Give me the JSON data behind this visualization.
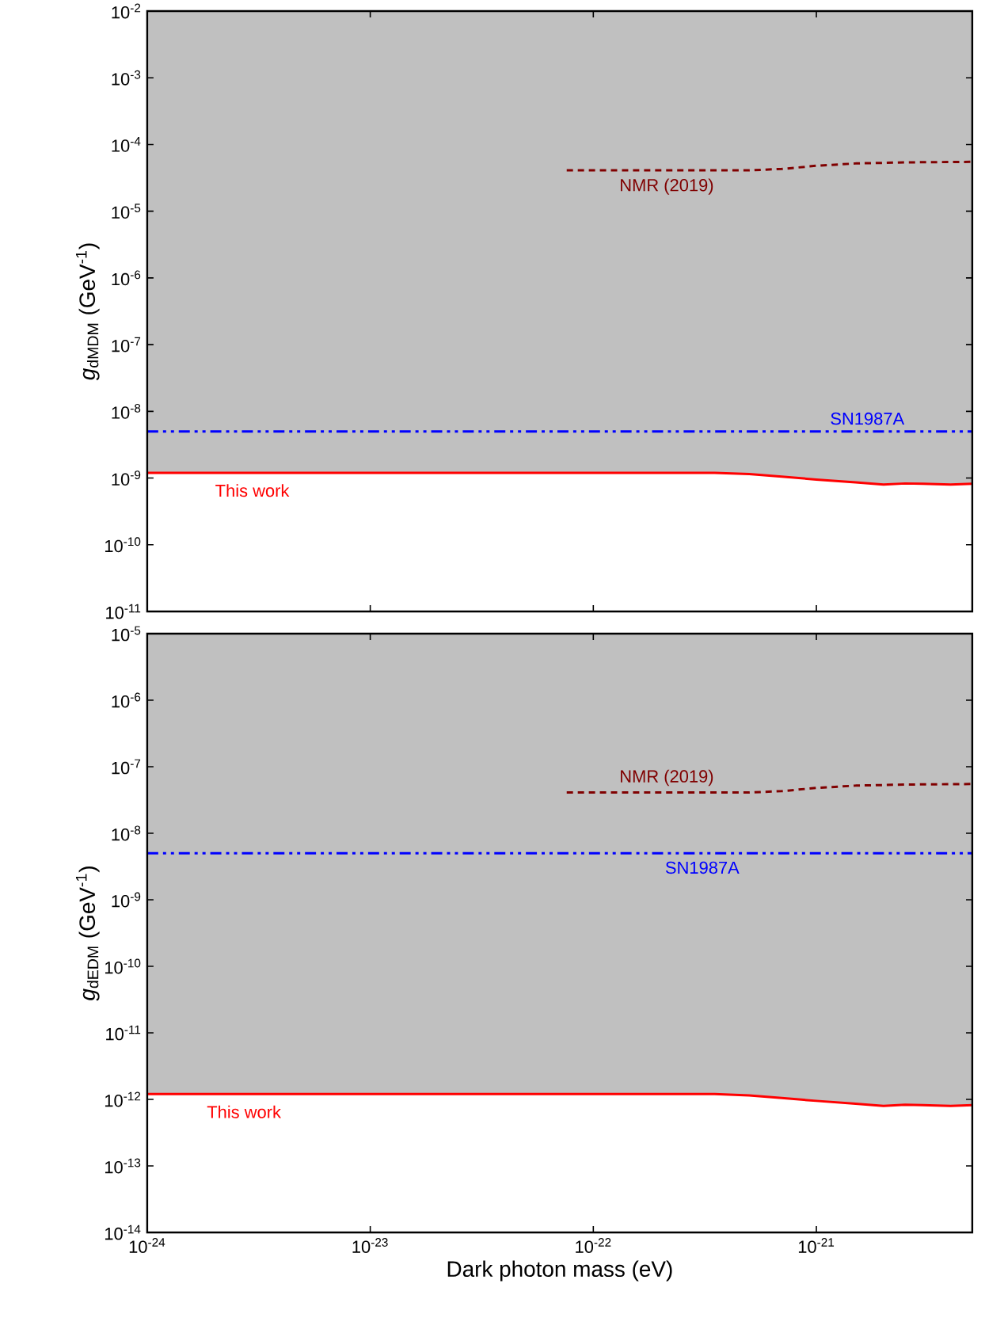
{
  "chart_data": [
    {
      "type": "line",
      "ylabel": "*g*$_{dMDM}$ (GeV$^{-1}$)",
      "xlim": [
        1e-24,
        5e-21
      ],
      "ylim": [
        1e-11,
        0.01
      ],
      "log": "xy",
      "tick_labels": "y",
      "xticks": [
        {
          "value": 1e-24,
          "label": null
        },
        {
          "value": 1e-23,
          "label": null
        },
        {
          "value": 1e-22,
          "label": null
        },
        {
          "value": 1e-21,
          "label": null
        }
      ],
      "yticks": [
        {
          "value": 1e-11,
          "label": "10$^{-11}$"
        },
        {
          "value": 1e-10,
          "label": "10$^{-10}$"
        },
        {
          "value": 1e-09,
          "label": "10$^{-9}$"
        },
        {
          "value": 1e-08,
          "label": "10$^{-8}$"
        },
        {
          "value": 1e-07,
          "label": "10$^{-7}$"
        },
        {
          "value": 1e-06,
          "label": "10$^{-6}$"
        },
        {
          "value": 1e-05,
          "label": "10$^{-5}$"
        },
        {
          "value": 0.0001,
          "label": "10$^{-4}$"
        },
        {
          "value": 0.001,
          "label": "10$^{-3}$"
        },
        {
          "value": 0.01,
          "label": "10$^{-2}$"
        }
      ],
      "series": [
        {
          "name": "This work",
          "color": "#ff0000",
          "line_style": "solid",
          "x": [
            1e-24,
            1e-23,
            1e-22,
            2e-22,
            3.5e-22,
            5e-22,
            7e-22,
            1e-21,
            1.5e-21,
            2e-21,
            2.5e-21,
            3e-21,
            4e-21,
            5e-21
          ],
          "values": [
            1.2e-09,
            1.2e-09,
            1.2e-09,
            1.2e-09,
            1.2e-09,
            1.15e-09,
            1.05e-09,
            9.5e-10,
            8.6e-10,
            8e-10,
            8.3e-10,
            8.2e-10,
            8e-10,
            8.2e-10
          ],
          "lower": [
            1.2e-09,
            1.2e-09,
            1.2e-09,
            1.2e-09,
            1.2e-09,
            1.15e-09,
            1.05e-09,
            9.5e-10,
            8.6e-10,
            8e-10,
            8.3e-10,
            8.2e-10,
            8e-10,
            8.2e-10
          ],
          "upper": [
            0.01,
            0.01,
            0.01,
            0.01,
            0.01,
            0.01,
            0.01,
            0.01,
            0.01,
            0.01,
            0.01,
            0.01,
            0.01,
            0.01
          ]
        },
        {
          "name": "NMR (2019)",
          "color": "#800000",
          "line_style": "dashed",
          "x": [
            7.6e-23,
            2e-22,
            5e-22,
            7e-22,
            1e-21,
            1.5e-21,
            2.5e-21,
            5e-21
          ],
          "values": [
            4.1e-05,
            4.1e-05,
            4.1e-05,
            4.3e-05,
            4.8e-05,
            5.2e-05,
            5.4e-05,
            5.5e-05
          ]
        }
      ],
      "ref_lines": [
        {
          "axis": "y",
          "value": 5e-09,
          "label": "SN1987A",
          "color": "#0000ff",
          "line_style": "dashdot"
        }
      ]
    },
    {
      "type": "line",
      "ylabel": "*g*$_{dEDM}$ (GeV$^{-1}$)",
      "xlabel": "Dark photon mass (eV)",
      "xlim": [
        1e-24,
        5e-21
      ],
      "ylim": [
        1e-14,
        1e-05
      ],
      "log": "xy",
      "xticks": [
        {
          "value": 1e-24,
          "label": "10$^{-24}$"
        },
        {
          "value": 1e-23,
          "label": "10$^{-23}$"
        },
        {
          "value": 1e-22,
          "label": "10$^{-22}$"
        },
        {
          "value": 1e-21,
          "label": "10$^{-21}$"
        }
      ],
      "yticks": [
        {
          "value": 1e-14,
          "label": "10$^{-14}$"
        },
        {
          "value": 1e-13,
          "label": "10$^{-13}$"
        },
        {
          "value": 1e-12,
          "label": "10$^{-12}$"
        },
        {
          "value": 1e-11,
          "label": "10$^{-11}$"
        },
        {
          "value": 1e-10,
          "label": "10$^{-10}$"
        },
        {
          "value": 1e-09,
          "label": "10$^{-9}$"
        },
        {
          "value": 1e-08,
          "label": "10$^{-8}$"
        },
        {
          "value": 1e-07,
          "label": "10$^{-7}$"
        },
        {
          "value": 1e-06,
          "label": "10$^{-6}$"
        },
        {
          "value": 1e-05,
          "label": "10$^{-5}$"
        }
      ],
      "series": [
        {
          "name": "This work",
          "color": "#ff0000",
          "line_style": "solid",
          "x": [
            1e-24,
            1e-23,
            1e-22,
            2e-22,
            3.5e-22,
            5e-22,
            7e-22,
            1e-21,
            1.5e-21,
            2e-21,
            2.5e-21,
            3e-21,
            4e-21,
            5e-21
          ],
          "values": [
            1.2e-12,
            1.2e-12,
            1.2e-12,
            1.2e-12,
            1.2e-12,
            1.15e-12,
            1.05e-12,
            9.5e-13,
            8.6e-13,
            8e-13,
            8.3e-13,
            8.2e-13,
            8e-13,
            8.2e-13
          ],
          "lower": [
            1.2e-12,
            1.2e-12,
            1.2e-12,
            1.2e-12,
            1.2e-12,
            1.15e-12,
            1.05e-12,
            9.5e-13,
            8.6e-13,
            8e-13,
            8.3e-13,
            8.2e-13,
            8e-13,
            8.2e-13
          ],
          "upper": [
            1e-05,
            1e-05,
            1e-05,
            1e-05,
            1e-05,
            1e-05,
            1e-05,
            1e-05,
            1e-05,
            1e-05,
            1e-05,
            1e-05,
            1e-05,
            1e-05
          ]
        },
        {
          "name": "NMR (2019)",
          "color": "#800000",
          "line_style": "dashed",
          "x": [
            7.6e-23,
            2e-22,
            5e-22,
            7e-22,
            1e-21,
            1.5e-21,
            2.5e-21,
            5e-21
          ],
          "values": [
            4.1e-08,
            4.1e-08,
            4.1e-08,
            4.3e-08,
            4.8e-08,
            5.2e-08,
            5.4e-08,
            5.5e-08
          ]
        }
      ],
      "ref_lines": [
        {
          "axis": "y",
          "value": 5e-09,
          "label": "SN1987A",
          "color": "#0000ff",
          "line_style": "dashdot"
        }
      ]
    }
  ]
}
